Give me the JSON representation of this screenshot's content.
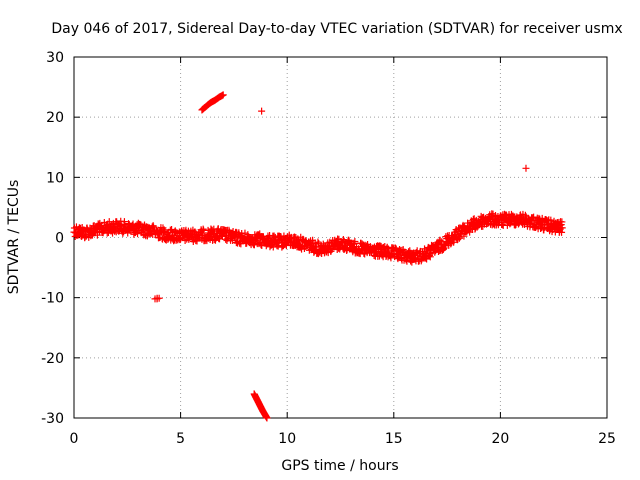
{
  "chart_data": {
    "type": "scatter",
    "title": "Day 046 of 2017, Sidereal Day-to-day VTEC variation (SDTVAR) for receiver usmx",
    "xlabel": "GPS time / hours",
    "ylabel": "SDTVAR / TECUs",
    "xlim": [
      0,
      25
    ],
    "ylim": [
      -30,
      30
    ],
    "xticks": [
      0,
      5,
      10,
      15,
      20,
      25
    ],
    "yticks": [
      -30,
      -20,
      -10,
      0,
      10,
      20,
      30
    ],
    "xtick_labels": [
      "0",
      "5",
      "10",
      "15",
      "20",
      "25"
    ],
    "ytick_labels": [
      "-30",
      "-20",
      "-10",
      "0",
      "10",
      "20",
      "30"
    ],
    "grid": true,
    "marker": "+",
    "marker_color": "#ff0000",
    "series": [
      {
        "name": "main-band",
        "x": [
          0.0,
          0.5,
          1.0,
          1.5,
          2.0,
          2.5,
          3.0,
          3.5,
          4.0,
          4.5,
          5.0,
          5.5,
          6.0,
          6.5,
          7.0,
          7.5,
          8.0,
          8.5,
          9.0,
          9.5,
          10.0,
          10.5,
          11.0,
          11.5,
          12.0,
          12.5,
          13.0,
          13.5,
          14.0,
          14.5,
          15.0,
          15.5,
          16.0,
          16.5,
          17.0,
          17.5,
          18.0,
          18.5,
          19.0,
          19.5,
          20.0,
          20.5,
          21.0,
          21.5,
          22.0,
          22.5,
          22.9
        ],
        "y": [
          1.2,
          0.8,
          1.2,
          1.6,
          1.8,
          1.6,
          1.4,
          1.2,
          0.8,
          0.4,
          0.3,
          0.3,
          0.4,
          0.5,
          0.5,
          0.0,
          -0.2,
          -0.3,
          -0.5,
          -0.8,
          -0.5,
          -0.8,
          -1.2,
          -1.8,
          -1.5,
          -1.0,
          -1.4,
          -2.0,
          -2.2,
          -2.4,
          -2.7,
          -3.0,
          -3.2,
          -2.8,
          -1.8,
          -0.6,
          0.6,
          1.6,
          2.6,
          3.0,
          2.8,
          3.0,
          3.0,
          2.6,
          2.2,
          1.8,
          1.6
        ]
      },
      {
        "name": "segment-a",
        "x": [
          6.0,
          6.2,
          6.4,
          6.6,
          6.8,
          7.0
        ],
        "y": [
          21.2,
          21.8,
          22.4,
          22.8,
          23.3,
          23.7
        ]
      },
      {
        "name": "segment-b",
        "x": [
          8.45,
          8.55,
          8.65,
          8.75,
          8.85,
          8.95,
          9.05
        ],
        "y": [
          -26.0,
          -26.7,
          -27.4,
          -28.1,
          -28.8,
          -29.4,
          -30.0
        ]
      },
      {
        "name": "isolated-points",
        "x": [
          8.8,
          3.8,
          3.9,
          21.2
        ],
        "y": [
          21.0,
          -10.2,
          -10.1,
          11.5
        ]
      }
    ]
  }
}
